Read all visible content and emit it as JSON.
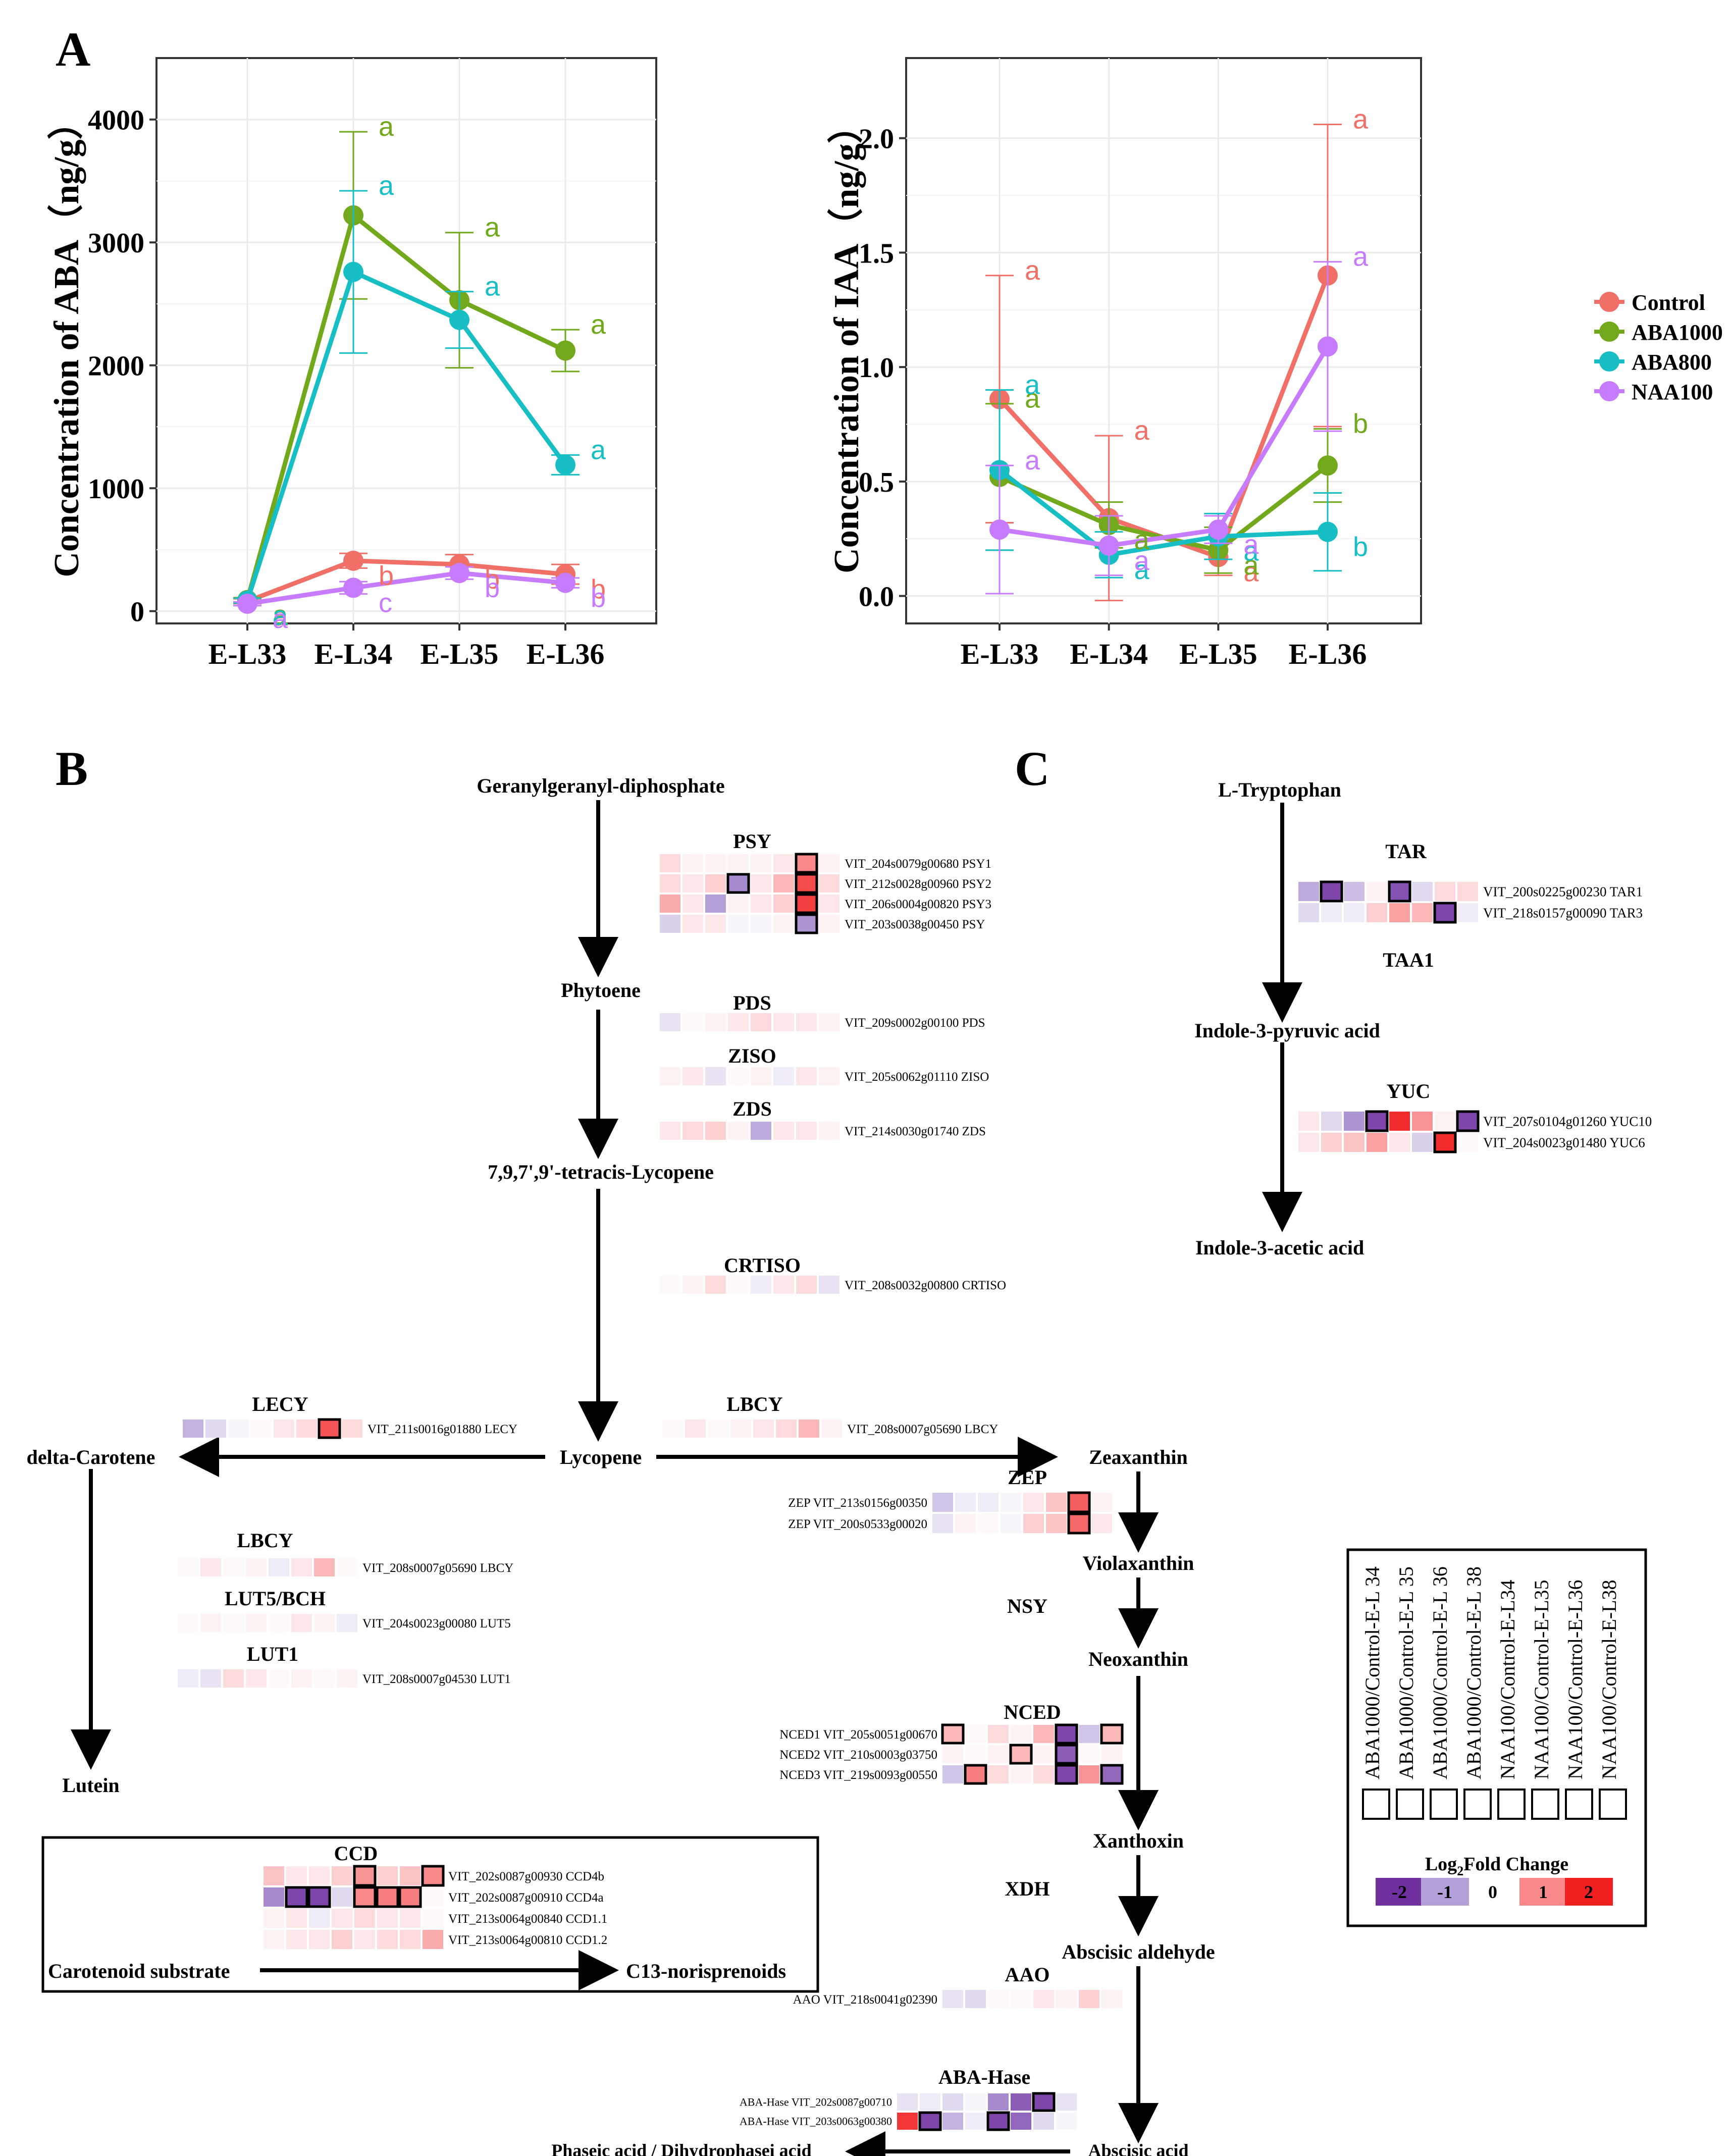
{
  "panel_labels": {
    "a": "A",
    "b": "B",
    "c": "C"
  },
  "colors": {
    "Control": "#f07067",
    "ABA1000": "#72a81c",
    "ABA800": "#17bfc5",
    "NAA100": "#c77cff",
    "neg2": "#7030a0",
    "neg1": "#b4a0d8",
    "pos1": "#f8888a",
    "pos2": "#f02020"
  },
  "legend": {
    "series": [
      {
        "name": "Control",
        "color": "#f07067"
      },
      {
        "name": "ABA1000",
        "color": "#72a81c"
      },
      {
        "name": "ABA800",
        "color": "#17bfc5"
      },
      {
        "name": "NAA100",
        "color": "#c77cff"
      }
    ]
  },
  "chart_data": [
    {
      "type": "line",
      "panel": "A-left",
      "title": "",
      "xlabel": "",
      "ylabel": "Concentration of ABA（ng/g）",
      "categories": [
        "E-L33",
        "E-L34",
        "E-L35",
        "E-L36"
      ],
      "yticks": [
        "0",
        "1000",
        "2000",
        "3000",
        "4000"
      ],
      "ylim": [
        -100,
        4500
      ],
      "series": [
        {
          "name": "Control",
          "values": [
            80,
            410,
            380,
            300
          ],
          "errors": [
            20,
            60,
            80,
            80
          ],
          "letters": [
            "a",
            "b",
            "b",
            "b"
          ]
        },
        {
          "name": "ABA1000",
          "values": [
            90,
            3220,
            2530,
            2120
          ],
          "errors": [
            20,
            680,
            550,
            170
          ],
          "letters": [
            "a",
            "a",
            "a",
            "a"
          ]
        },
        {
          "name": "ABA800",
          "values": [
            85,
            2760,
            2370,
            1190
          ],
          "errors": [
            20,
            660,
            230,
            80
          ],
          "letters": [
            "a",
            "a",
            "a",
            "a"
          ]
        },
        {
          "name": "NAA100",
          "values": [
            60,
            190,
            310,
            230
          ],
          "errors": [
            15,
            50,
            50,
            40
          ],
          "letters": [
            "a",
            "c",
            "b",
            "b"
          ]
        }
      ]
    },
    {
      "type": "line",
      "panel": "A-right",
      "title": "",
      "xlabel": "",
      "ylabel": "Concentration of IAA（ng/g）",
      "categories": [
        "E-L33",
        "E-L34",
        "E-L35",
        "E-L36"
      ],
      "yticks": [
        "0.0",
        "0.5",
        "1.0",
        "1.5",
        "2.0"
      ],
      "ylim": [
        -0.12,
        2.35
      ],
      "series": [
        {
          "name": "Control",
          "values": [
            0.86,
            0.34,
            0.17,
            1.4
          ],
          "errors": [
            0.54,
            0.36,
            0.08,
            0.66
          ],
          "letters": [
            "a",
            "a",
            "a",
            "a"
          ]
        },
        {
          "name": "ABA1000",
          "values": [
            0.52,
            0.31,
            0.2,
            0.57
          ],
          "errors": [
            0.32,
            0.1,
            0.1,
            0.16
          ],
          "letters": [
            "a",
            "a",
            "a",
            "b"
          ]
        },
        {
          "name": "ABA800",
          "values": [
            0.55,
            0.18,
            0.26,
            0.28
          ],
          "errors": [
            0.35,
            0.1,
            0.1,
            0.17
          ],
          "letters": [
            "a",
            "a",
            "a",
            "b"
          ]
        },
        {
          "name": "NAA100",
          "values": [
            0.29,
            0.22,
            0.29,
            1.09
          ],
          "errors": [
            0.28,
            0.13,
            0.06,
            0.37
          ],
          "letters": [
            "a",
            "a",
            "a",
            "a"
          ]
        }
      ]
    }
  ],
  "pathway_b": {
    "compounds": {
      "ggpp": "Geranylgeranyl-diphosphate",
      "phytoene": "Phytoene",
      "tetracis": "7,9,7',9'-tetracis-Lycopene",
      "lycopene": "Lycopene",
      "delta": "delta-Carotene",
      "lutein": "Lutein",
      "zeaxanthin": "Zeaxanthin",
      "violaxanthin": "Violaxanthin",
      "neoxanthin": "Neoxanthin",
      "xanthoxin": "Xanthoxin",
      "aldehyde": "Abscisic aldehyde",
      "aba": "Abscisic acid",
      "phaseic": "Phaseic acid / Dihydrophasei acid",
      "substrate": "Carotenoid substrate",
      "norisoprenoids": "C13-norisprenoids"
    },
    "enzymes": {
      "psy": "PSY",
      "pds": "PDS",
      "ziso": "ZISO",
      "zds": "ZDS",
      "crtiso": "CRTISO",
      "lecy": "LECY",
      "lbcy_top": "LBCY",
      "zep": "ZEP",
      "lbcy_left": "LBCY",
      "lut5": "LUT5/BCH",
      "lut1": "LUT1",
      "nsy": "NSY",
      "nced": "NCED",
      "xdh": "XDH",
      "aao": "AAO",
      "abahase": "ABA-Hase",
      "ccd": "CCD"
    }
  },
  "pathway_c": {
    "compounds": {
      "trp": "L-Tryptophan",
      "ipa": "Indole-3-pyruvic acid",
      "iaa": "Indole-3-acetic acid"
    },
    "enzymes": {
      "tar": "TAR",
      "taa1": "TAA1",
      "yuc": "YUC"
    }
  },
  "heatmaps": [
    {
      "id": "psy",
      "rows": [
        {
          "gene": "VIT_204s0079g00680",
          "name": "PSY1",
          "values": [
            0.3,
            0.1,
            0.1,
            0.1,
            0.1,
            0.2,
            1.0,
            0.1
          ],
          "boxed": [
            6
          ]
        },
        {
          "gene": "VIT_212s0028g00960",
          "name": "PSY2",
          "values": [
            0.3,
            0.2,
            0.4,
            -1.2,
            0.2,
            0.6,
            1.6,
            0.3
          ],
          "boxed": [
            3,
            6
          ]
        },
        {
          "gene": "VIT_206s0004g00820",
          "name": "PSY3",
          "values": [
            0.7,
            0.2,
            -1.0,
            0.1,
            0.2,
            0.4,
            1.7,
            0.2
          ],
          "boxed": [
            6
          ]
        },
        {
          "gene": "VIT_203s0038g00450",
          "name": "PSY",
          "values": [
            -0.5,
            0.2,
            0.2,
            -0.1,
            -0.1,
            0.1,
            -1.1,
            0.1
          ],
          "boxed": [
            6
          ]
        }
      ]
    },
    {
      "id": "pds",
      "rows": [
        {
          "gene": "VIT_209s0002g00100",
          "name": "PDS",
          "values": [
            -0.3,
            0.05,
            0.1,
            0.2,
            0.3,
            0.2,
            0.2,
            0.1
          ],
          "boxed": []
        }
      ]
    },
    {
      "id": "ziso",
      "rows": [
        {
          "gene": "VIT_205s0062g01110",
          "name": "ZISO",
          "values": [
            0.1,
            0.2,
            -0.3,
            0.05,
            0.1,
            -0.2,
            0.2,
            0.1
          ],
          "boxed": []
        }
      ]
    },
    {
      "id": "zds",
      "rows": [
        {
          "gene": "VIT_214s0030g01740",
          "name": "ZDS",
          "values": [
            0.2,
            0.3,
            0.4,
            0.1,
            -0.9,
            0.2,
            0.2,
            0.1
          ],
          "boxed": []
        }
      ]
    },
    {
      "id": "crtiso",
      "rows": [
        {
          "gene": "VIT_208s0032g00800",
          "name": "CRTISO",
          "values": [
            0.05,
            0.1,
            0.3,
            0.05,
            -0.2,
            0.2,
            0.3,
            -0.3
          ],
          "boxed": []
        }
      ]
    },
    {
      "id": "lecy",
      "rows": [
        {
          "gene": "VIT_211s0016g01880",
          "name": "LECY",
          "values": [
            -0.8,
            -0.4,
            -0.1,
            0.05,
            0.2,
            0.3,
            1.5,
            0.3
          ],
          "boxed": [
            6
          ]
        }
      ]
    },
    {
      "id": "lbcy_top",
      "rows": [
        {
          "gene": "VIT_208s0007g05690",
          "name": "LBCY",
          "values": [
            0.05,
            0.2,
            0.05,
            0.1,
            0.2,
            0.3,
            0.6,
            0.1
          ],
          "boxed": []
        }
      ]
    },
    {
      "id": "zep",
      "rows": [
        {
          "gene": "VIT_213s0156g00350",
          "name": "ZEP",
          "values": [
            -0.6,
            -0.2,
            -0.2,
            -0.1,
            0.2,
            0.5,
            1.4,
            0.1
          ],
          "boxed": [
            6
          ]
        },
        {
          "gene": "VIT_200s0533g00020",
          "name": "ZEP",
          "values": [
            -0.3,
            0.1,
            0.05,
            -0.1,
            0.4,
            0.5,
            1.3,
            0.2
          ],
          "boxed": [
            6
          ]
        }
      ]
    },
    {
      "id": "lbcy_left",
      "rows": [
        {
          "gene": "VIT_208s0007g05690",
          "name": "LBCY",
          "values": [
            0.05,
            0.2,
            0.05,
            0.1,
            -0.2,
            0.2,
            0.6,
            0.05
          ],
          "boxed": []
        }
      ]
    },
    {
      "id": "lut5",
      "rows": [
        {
          "gene": "VIT_204s0023g00080",
          "name": "LUT5",
          "values": [
            0.05,
            0.1,
            0.05,
            0.1,
            0.05,
            0.2,
            0.1,
            -0.2
          ],
          "boxed": []
        }
      ]
    },
    {
      "id": "lut1",
      "rows": [
        {
          "gene": "VIT_208s0007g04530",
          "name": "LUT1",
          "values": [
            -0.2,
            -0.3,
            0.3,
            0.2,
            0.05,
            0.1,
            0.05,
            0.1
          ],
          "boxed": []
        }
      ]
    },
    {
      "id": "nced",
      "rows": [
        {
          "gene": "VIT_205s0051g00670",
          "name": "NCED1",
          "values": [
            0.6,
            0.05,
            0.3,
            0.1,
            0.6,
            -1.8,
            -0.6,
            0.6
          ],
          "boxed": [
            0,
            5,
            7
          ]
        },
        {
          "gene": "VIT_210s0003g03750",
          "name": "NCED2",
          "values": [
            0.1,
            0.05,
            0.1,
            0.6,
            0.1,
            -1.6,
            0.05,
            0.1
          ],
          "boxed": [
            3,
            5
          ]
        },
        {
          "gene": "VIT_219s0093g00550",
          "name": "NCED3",
          "values": [
            -0.6,
            1.1,
            0.3,
            0.1,
            0.3,
            -1.8,
            0.9,
            -1.5
          ],
          "boxed": [
            1,
            5,
            7
          ]
        }
      ]
    },
    {
      "id": "aao",
      "rows": [
        {
          "gene": "VIT_218s0041g02390",
          "name": "AAO",
          "values": [
            -0.3,
            -0.4,
            0.05,
            0.05,
            0.2,
            0.1,
            0.4,
            0.1
          ],
          "boxed": []
        }
      ]
    },
    {
      "id": "abahase",
      "rows": [
        {
          "gene": "VIT_202s0087g00710",
          "name": "ABA-Hase",
          "values": [
            -0.3,
            -0.2,
            -0.4,
            -0.1,
            -1.2,
            -1.6,
            -1.8,
            -0.3
          ],
          "boxed": [
            6
          ]
        },
        {
          "gene": "VIT_203s0063g00380",
          "name": "ABA-Hase",
          "values": [
            1.8,
            -1.8,
            -0.8,
            -0.2,
            -1.8,
            -1.5,
            -0.4,
            -0.1
          ],
          "boxed": [
            1,
            4
          ]
        }
      ]
    },
    {
      "id": "ccd",
      "rows": [
        {
          "gene": "VIT_202s0087g00930",
          "name": "CCD4b",
          "values": [
            0.5,
            0.2,
            0.2,
            0.4,
            0.9,
            0.4,
            0.5,
            1.0
          ],
          "boxed": [
            4,
            7
          ]
        },
        {
          "gene": "VIT_202s0087g00910",
          "name": "CCD4a",
          "values": [
            -1.2,
            -1.8,
            -1.8,
            -0.4,
            1.0,
            1.1,
            1.1,
            0.05
          ],
          "boxed": [
            1,
            2,
            4,
            5,
            6
          ]
        },
        {
          "gene": "VIT_213s0064g00840",
          "name": "CCD1.1",
          "values": [
            0.1,
            0.2,
            -0.2,
            0.2,
            0.3,
            0.2,
            0.2,
            0.05
          ],
          "boxed": []
        },
        {
          "gene": "VIT_213s0064g00810",
          "name": "CCD1.2",
          "values": [
            0.1,
            0.2,
            0.2,
            0.4,
            0.2,
            0.3,
            0.3,
            0.7
          ],
          "boxed": []
        }
      ]
    },
    {
      "id": "tar",
      "rows": [
        {
          "gene": "VIT_200s0225g00230",
          "name": "TAR1",
          "values": [
            -0.9,
            -1.8,
            -0.7,
            0.1,
            -1.7,
            -0.4,
            0.3,
            0.3
          ],
          "boxed": [
            1,
            4
          ]
        },
        {
          "gene": "VIT_218s0157g00090",
          "name": "TAR3",
          "values": [
            -0.4,
            -0.2,
            -0.2,
            0.4,
            0.8,
            0.6,
            -1.8,
            -0.2
          ],
          "boxed": [
            6
          ]
        }
      ]
    },
    {
      "id": "yuc",
      "rows": [
        {
          "gene": "VIT_207s0104g01260",
          "name": "YUC10",
          "values": [
            0.2,
            -0.4,
            -1.1,
            -1.8,
            1.9,
            0.9,
            0.1,
            -1.8
          ],
          "boxed": [
            3,
            7
          ]
        },
        {
          "gene": "VIT_204s0023g01480",
          "name": "YUC6",
          "values": [
            0.2,
            0.4,
            0.5,
            0.8,
            0.2,
            -0.5,
            1.9,
            0.05
          ],
          "boxed": [
            6
          ]
        }
      ]
    }
  ],
  "heatmap_legend": {
    "columns": [
      "ABA1000/Control-E-L 34",
      "ABA1000/Control-E-L 35",
      "ABA1000/Control-E-L 36",
      "ABA1000/Control-E-L 38",
      "NAA100/Control-E-L34",
      "NAA100/Control-E-L35",
      "NAA100/Control-E-L36",
      "NAA100/Control-E-L38"
    ],
    "title_main": "Log",
    "title_sub": "2",
    "title_rest": "Fold Change",
    "scale": [
      {
        "label": "-2",
        "color": "#7030a0"
      },
      {
        "label": "-1",
        "color": "#b4a0d8"
      },
      {
        "label": "0",
        "color": "#ffffff"
      },
      {
        "label": "1",
        "color": "#f8888a"
      },
      {
        "label": "2",
        "color": "#f02020"
      }
    ]
  }
}
